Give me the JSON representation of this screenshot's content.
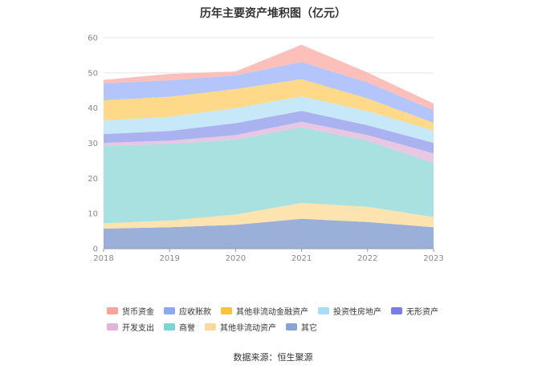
{
  "title": "历年主要资产堆积图（亿元）",
  "source": "数据来源：恒生聚源",
  "chart_data": {
    "type": "area",
    "stacked": true,
    "title": "历年主要资产堆积图（亿元）",
    "categories": [
      "2018",
      "2019",
      "2020",
      "2021",
      "2022",
      "2023"
    ],
    "ylim": [
      0,
      60
    ],
    "yticks": [
      0,
      10,
      20,
      30,
      40,
      50,
      60
    ],
    "grid": true,
    "legend_position": "bottom",
    "series": [
      {
        "name": "其它",
        "color": "#9bb0d9",
        "values": [
          5.7,
          6.1,
          6.8,
          8.5,
          7.6,
          6.1
        ]
      },
      {
        "name": "其他非流动资产",
        "color": "#fde3b0",
        "values": [
          1.5,
          1.9,
          2.9,
          4.5,
          4.3,
          2.9
        ]
      },
      {
        "name": "商誉",
        "color": "#a9e1e0",
        "values": [
          22.0,
          21.8,
          21.3,
          21.5,
          18.8,
          15.4
        ]
      },
      {
        "name": "开发支出",
        "color": "#e8c7e3",
        "values": [
          0.9,
          0.9,
          1.3,
          1.6,
          1.6,
          2.7
        ]
      },
      {
        "name": "无形资产",
        "color": "#aab2ef",
        "values": [
          2.5,
          2.8,
          3.4,
          3.1,
          2.8,
          3.0
        ]
      },
      {
        "name": "投资性房地产",
        "color": "#c7e8f8",
        "values": [
          3.9,
          4.0,
          4.3,
          4.1,
          4.0,
          3.5
        ]
      },
      {
        "name": "其他非流动金融资产",
        "color": "#fed98a",
        "values": [
          5.7,
          5.7,
          5.4,
          4.9,
          3.6,
          2.2
        ]
      },
      {
        "name": "应收账款",
        "color": "#b3c5fb",
        "values": [
          4.8,
          4.7,
          3.9,
          4.9,
          4.6,
          3.6
        ]
      },
      {
        "name": "货币资金",
        "color": "#fcbfba",
        "values": [
          1.0,
          1.8,
          1.1,
          4.9,
          2.8,
          1.9
        ]
      }
    ]
  },
  "legend_rows": [
    [
      {
        "name": "货币资金",
        "color": "#f9a39a"
      },
      {
        "name": "应收账款",
        "color": "#8ca8f6"
      },
      {
        "name": "其他非流动金融资产",
        "color": "#fbc33a"
      },
      {
        "name": "投资性房地产",
        "color": "#a9dcf7"
      },
      {
        "name": "无形资产",
        "color": "#7a7cee"
      }
    ],
    [
      {
        "name": "开发支出",
        "color": "#e3b3dc"
      },
      {
        "name": "商誉",
        "color": "#7dd4d3"
      },
      {
        "name": "其他非流动资产",
        "color": "#fcd89d"
      },
      {
        "name": "其它",
        "color": "#8aa3d4"
      }
    ]
  ]
}
